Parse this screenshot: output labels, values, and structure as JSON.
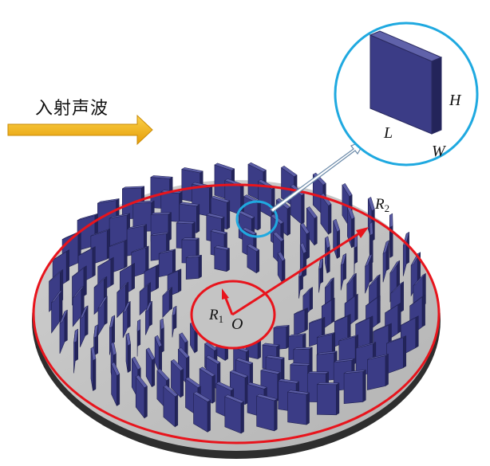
{
  "incident_wave_label": "入射声波",
  "symbols": {
    "inner_radius": "R",
    "inner_radius_sub": "1",
    "outer_radius": "R",
    "outer_radius_sub": "2",
    "center": "O",
    "height": "H",
    "length": "L",
    "width": "W"
  },
  "colors": {
    "plate_face": "#3b3c86",
    "plate_top": "#5c5ea6",
    "plate_side": "#23245a",
    "disc": "#c0c0c0",
    "rim": "#303030",
    "red_circle": "#e8141c",
    "zoom_circle": "#1fa9e0",
    "arrow_gold": "#f5b513"
  },
  "icons": {
    "incident-arrow": "right-arrow",
    "zoom-pointer": "hollow-arrow"
  }
}
